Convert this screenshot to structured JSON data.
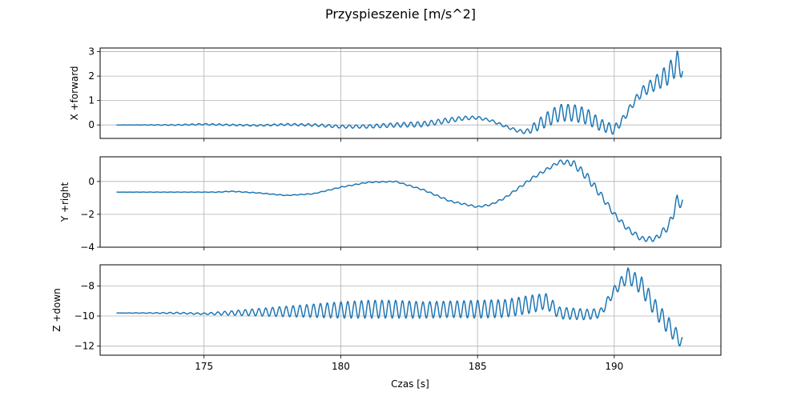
{
  "figure": {
    "title": "Przyspieszenie [m/s^2]",
    "xlabel": "Czas [s]"
  },
  "chart_data": [
    {
      "type": "line",
      "ylabel": "X +forward",
      "xlim": [
        171.2,
        193.9
      ],
      "ylim": [
        -0.55,
        3.15
      ],
      "xticks": [
        175,
        180,
        185,
        190
      ],
      "yticks": [
        0,
        1,
        2,
        3
      ],
      "show_xtick_labels": false,
      "grid": true,
      "color": "#1f77b4",
      "series": [
        {
          "x": [
            171.8,
            173.0,
            174.0,
            175.0,
            176.0,
            177.0,
            178.0,
            179.0,
            180.0,
            181.0,
            182.0,
            183.0,
            184.0,
            184.5,
            185.0,
            185.5,
            186.0,
            186.5,
            186.8,
            187.1,
            187.5,
            188.0,
            188.5,
            189.0,
            189.5,
            190.0,
            190.3,
            190.7,
            191.0,
            191.5,
            192.0,
            192.3,
            192.5
          ],
          "y": [
            0.0,
            0.0,
            0.0,
            0.03,
            0.0,
            -0.02,
            0.02,
            0.0,
            -0.07,
            -0.06,
            0.0,
            0.03,
            0.2,
            0.28,
            0.3,
            0.18,
            -0.05,
            -0.25,
            -0.28,
            -0.08,
            0.2,
            0.5,
            0.5,
            0.35,
            0.0,
            -0.2,
            0.2,
            0.9,
            1.35,
            1.7,
            2.1,
            2.55,
            2.2
          ],
          "amplitude": [
            0.0,
            0.01,
            0.02,
            0.03,
            0.03,
            0.03,
            0.04,
            0.05,
            0.06,
            0.07,
            0.09,
            0.11,
            0.1,
            0.08,
            0.06,
            0.05,
            0.05,
            0.06,
            0.1,
            0.2,
            0.3,
            0.35,
            0.35,
            0.33,
            0.25,
            0.2,
            0.15,
            0.15,
            0.2,
            0.3,
            0.45,
            0.5,
            0.3
          ]
        }
      ]
    },
    {
      "type": "line",
      "ylabel": "Y +right",
      "xlim": [
        171.2,
        193.9
      ],
      "ylim": [
        -4.0,
        1.5
      ],
      "xticks": [
        175,
        180,
        185,
        190
      ],
      "yticks": [
        -4,
        -2,
        0
      ],
      "show_xtick_labels": false,
      "grid": true,
      "color": "#1f77b4",
      "series": [
        {
          "x": [
            171.8,
            173.0,
            174.0,
            175.0,
            175.5,
            176.0,
            177.0,
            178.0,
            179.0,
            180.0,
            181.0,
            182.0,
            183.0,
            184.0,
            185.0,
            185.5,
            186.0,
            187.0,
            188.0,
            188.5,
            189.0,
            189.5,
            190.0,
            190.5,
            191.0,
            191.5,
            192.0,
            192.3,
            192.5
          ],
          "y": [
            -0.65,
            -0.65,
            -0.65,
            -0.65,
            -0.65,
            -0.6,
            -0.7,
            -0.85,
            -0.75,
            -0.35,
            -0.05,
            0.0,
            -0.5,
            -1.2,
            -1.55,
            -1.4,
            -1.0,
            0.2,
            1.2,
            1.1,
            0.3,
            -0.8,
            -2.0,
            -2.9,
            -3.5,
            -3.5,
            -2.7,
            -1.2,
            -1.3
          ],
          "amplitude": [
            0.0,
            0.01,
            0.01,
            0.01,
            0.02,
            0.02,
            0.02,
            0.02,
            0.02,
            0.03,
            0.03,
            0.03,
            0.04,
            0.05,
            0.05,
            0.05,
            0.06,
            0.08,
            0.1,
            0.2,
            0.25,
            0.2,
            0.15,
            0.15,
            0.15,
            0.15,
            0.25,
            0.4,
            0.3
          ]
        }
      ]
    },
    {
      "type": "line",
      "ylabel": "Z +down",
      "xlim": [
        171.2,
        193.9
      ],
      "ylim": [
        -12.6,
        -6.6
      ],
      "xticks": [
        175,
        180,
        185,
        190
      ],
      "yticks": [
        -12,
        -10,
        -8
      ],
      "show_xtick_labels": true,
      "grid": true,
      "color": "#1f77b4",
      "series": [
        {
          "x": [
            171.8,
            173.0,
            174.0,
            175.0,
            176.0,
            177.0,
            178.0,
            179.0,
            180.0,
            181.0,
            182.0,
            183.0,
            184.0,
            185.0,
            186.0,
            187.0,
            187.5,
            188.0,
            189.0,
            189.5,
            190.0,
            190.5,
            191.0,
            191.5,
            192.0,
            192.5
          ],
          "y": [
            -9.8,
            -9.8,
            -9.8,
            -9.85,
            -9.8,
            -9.75,
            -9.7,
            -9.65,
            -9.6,
            -9.55,
            -9.55,
            -9.6,
            -9.55,
            -9.55,
            -9.5,
            -9.2,
            -9.0,
            -9.8,
            -9.9,
            -9.8,
            -8.3,
            -7.3,
            -8.0,
            -9.5,
            -10.7,
            -11.8
          ],
          "amplitude": [
            0.0,
            0.02,
            0.05,
            0.05,
            0.15,
            0.25,
            0.35,
            0.45,
            0.55,
            0.6,
            0.6,
            0.55,
            0.55,
            0.6,
            0.6,
            0.6,
            0.5,
            0.4,
            0.35,
            0.3,
            0.3,
            0.5,
            0.6,
            0.6,
            0.6,
            0.4
          ]
        }
      ]
    }
  ]
}
